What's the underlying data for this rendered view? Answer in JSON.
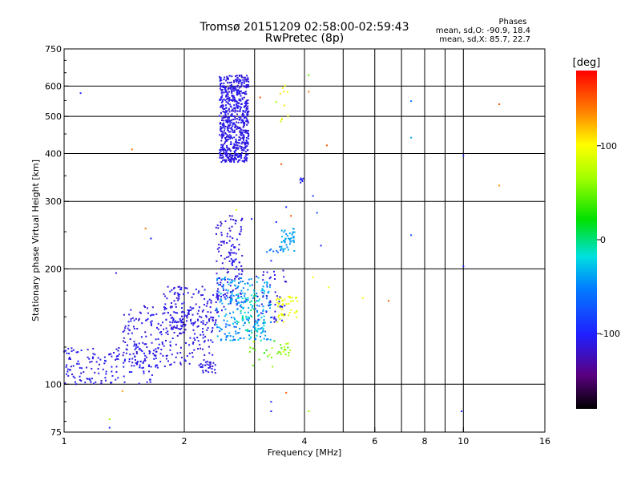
{
  "chart_data": {
    "type": "scatter",
    "title": "Tromsø 20151209 02:58:00-02:59:43",
    "subtitle": "RwPretec (8p)",
    "xlabel": "Frequency [MHz]",
    "ylabel": "Stationary phase Virtual Height [km]",
    "x_scale": "log",
    "y_scale": "log",
    "xlim": [
      1,
      16
    ],
    "ylim": [
      75,
      750
    ],
    "x_ticks": [
      1,
      2,
      4,
      6,
      8,
      10,
      16
    ],
    "x_tick_labels": [
      "1",
      "2",
      "4",
      "6",
      "8",
      "10",
      "16"
    ],
    "x_minor_ticks": [
      3,
      5,
      7,
      9
    ],
    "y_ticks": [
      75,
      100,
      200,
      300,
      400,
      500,
      600,
      750
    ],
    "y_tick_labels": [
      "75",
      "100",
      "200",
      "300",
      "400",
      "500",
      "600",
      "750"
    ],
    "grid": true,
    "colorbar": {
      "label": "[deg]",
      "range": [
        -180,
        180
      ],
      "ticks": [
        100,
        0,
        -100
      ],
      "tick_labels": [
        "100",
        "0",
        "-100"
      ]
    },
    "info": {
      "heading": "Phases",
      "o_line": "mean, sd,O: -90.9, 18.4",
      "x_line": "mean, sd,X:  85.7, 22.7"
    },
    "clusters": [
      {
        "fx": [
          2.45,
          2.9
        ],
        "hy": [
          380,
          640
        ],
        "phase": -110,
        "spread": 8,
        "count": 700
      },
      {
        "fx": [
          1.0,
          1.7
        ],
        "hy": [
          100,
          125
        ],
        "phase": -108,
        "spread": 8,
        "count": 160
      },
      {
        "fx": [
          1.4,
          2.4
        ],
        "hy": [
          110,
          160
        ],
        "phase": -110,
        "spread": 8,
        "count": 260
      },
      {
        "fx": [
          1.75,
          2.45
        ],
        "hy": [
          140,
          180
        ],
        "phase": -110,
        "spread": 8,
        "count": 130
      },
      {
        "fx": [
          2.4,
          2.8
        ],
        "hy": [
          155,
          275
        ],
        "phase": -112,
        "spread": 8,
        "count": 140
      },
      {
        "fx": [
          2.4,
          3.3
        ],
        "hy": [
          130,
          190
        ],
        "phase": -45,
        "spread": 20,
        "count": 220
      },
      {
        "fx": [
          2.7,
          3.2
        ],
        "hy": [
          130,
          175
        ],
        "phase": -15,
        "spread": 20,
        "count": 60
      },
      {
        "fx": [
          3.5,
          3.8
        ],
        "hy": [
          222,
          255
        ],
        "phase": -40,
        "spread": 6,
        "count": 45
      },
      {
        "fx": [
          3.4,
          3.85
        ],
        "hy": [
          145,
          170
        ],
        "phase": 95,
        "spread": 12,
        "count": 45
      },
      {
        "fx": [
          3.4,
          3.7
        ],
        "hy": [
          118,
          130
        ],
        "phase": 60,
        "spread": 20,
        "count": 18
      },
      {
        "fx": [
          2.9,
          3.4
        ],
        "hy": [
          110,
          130
        ],
        "phase": 40,
        "spread": 25,
        "count": 15
      },
      {
        "fx": [
          2.2,
          2.4
        ],
        "hy": [
          107,
          115
        ],
        "phase": -110,
        "spread": 5,
        "count": 20
      },
      {
        "fx": [
          3.0,
          3.6
        ],
        "hy": [
          145,
          200
        ],
        "phase": -110,
        "spread": 8,
        "count": 45
      },
      {
        "fx": [
          3.45,
          3.65
        ],
        "hy": [
          480,
          620
        ],
        "phase": 95,
        "spread": 20,
        "count": 10
      },
      {
        "fx": [
          3.9,
          4.0
        ],
        "hy": [
          335,
          345
        ],
        "phase": -100,
        "spread": 5,
        "count": 6
      },
      {
        "fx": [
          3.2,
          3.5
        ],
        "hy": [
          220,
          230
        ],
        "phase": -60,
        "spread": 5,
        "count": 8
      }
    ],
    "points": [
      {
        "x": 1.1,
        "y": 575,
        "phase": -100
      },
      {
        "x": 1.48,
        "y": 410,
        "phase": 140
      },
      {
        "x": 1.65,
        "y": 240,
        "phase": -100
      },
      {
        "x": 1.6,
        "y": 255,
        "phase": 140
      },
      {
        "x": 1.35,
        "y": 195,
        "phase": -110
      },
      {
        "x": 1.4,
        "y": 96,
        "phase": 130
      },
      {
        "x": 1.3,
        "y": 81,
        "phase": 60
      },
      {
        "x": 1.3,
        "y": 77,
        "phase": -100
      },
      {
        "x": 4.1,
        "y": 640,
        "phase": 50
      },
      {
        "x": 4.1,
        "y": 580,
        "phase": 140
      },
      {
        "x": 4.55,
        "y": 420,
        "phase": 150
      },
      {
        "x": 3.5,
        "y": 375,
        "phase": 150
      },
      {
        "x": 7.4,
        "y": 548,
        "phase": -60
      },
      {
        "x": 7.4,
        "y": 440,
        "phase": -40
      },
      {
        "x": 7.4,
        "y": 245,
        "phase": -80
      },
      {
        "x": 10.0,
        "y": 395,
        "phase": -100
      },
      {
        "x": 10.0,
        "y": 203,
        "phase": -100
      },
      {
        "x": 9.9,
        "y": 85,
        "phase": -100
      },
      {
        "x": 12.3,
        "y": 538,
        "phase": 150
      },
      {
        "x": 12.3,
        "y": 330,
        "phase": 130
      },
      {
        "x": 6.5,
        "y": 165,
        "phase": 150
      },
      {
        "x": 5.6,
        "y": 168,
        "phase": 95
      },
      {
        "x": 4.6,
        "y": 179,
        "phase": 95
      },
      {
        "x": 4.2,
        "y": 190,
        "phase": 100
      },
      {
        "x": 4.1,
        "y": 85,
        "phase": 60
      },
      {
        "x": 3.3,
        "y": 90,
        "phase": -100
      },
      {
        "x": 3.3,
        "y": 85,
        "phase": -100
      },
      {
        "x": 3.6,
        "y": 95,
        "phase": 150
      },
      {
        "x": 4.4,
        "y": 230,
        "phase": -100
      },
      {
        "x": 4.3,
        "y": 280,
        "phase": -80
      },
      {
        "x": 4.2,
        "y": 310,
        "phase": -90
      },
      {
        "x": 3.7,
        "y": 275,
        "phase": 150
      },
      {
        "x": 3.6,
        "y": 290,
        "phase": -100
      },
      {
        "x": 2.7,
        "y": 285,
        "phase": 90
      },
      {
        "x": 2.6,
        "y": 275,
        "phase": -120
      },
      {
        "x": 3.3,
        "y": 210,
        "phase": -100
      },
      {
        "x": 3.4,
        "y": 265,
        "phase": -100
      },
      {
        "x": 2.95,
        "y": 270,
        "phase": -100
      },
      {
        "x": 3.1,
        "y": 560,
        "phase": 150
      },
      {
        "x": 3.4,
        "y": 545,
        "phase": 60
      }
    ]
  }
}
